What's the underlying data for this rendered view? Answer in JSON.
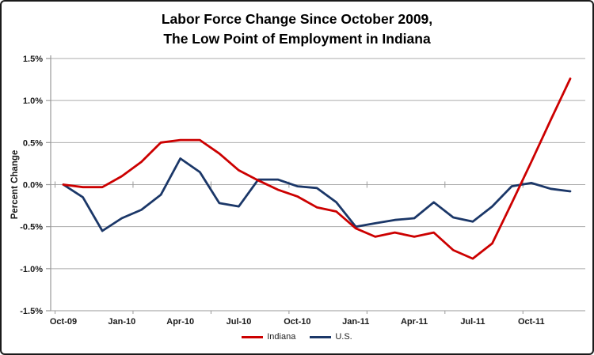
{
  "window": {
    "title_line1": "Labor Force Change Since October 2009,",
    "title_line2": "The Low Point of Employment in Indiana"
  },
  "chart_data": {
    "type": "line",
    "title": "Labor Force Change Since October 2009, The Low Point of Employment in Indiana",
    "xlabel": "",
    "ylabel": "Percent Change",
    "ylim": [
      -1.5,
      1.5
    ],
    "ytick_step": 0.5,
    "ytick_labels": [
      "1.5%",
      "1.0%",
      "0.5%",
      "0.0%",
      "-0.5%",
      "-1.0%",
      "-1.5%"
    ],
    "x_tick_labels": [
      "Oct-09",
      "Jan-10",
      "Apr-10",
      "Jul-10",
      "Oct-10",
      "Jan-11",
      "Apr-11",
      "Jul-11",
      "Oct-11"
    ],
    "x_tick_every": 3,
    "grid": true,
    "legend_position": "bottom",
    "categories": [
      "Oct-09",
      "Nov-09",
      "Dec-09",
      "Jan-10",
      "Feb-10",
      "Mar-10",
      "Apr-10",
      "May-10",
      "Jun-10",
      "Jul-10",
      "Aug-10",
      "Sep-10",
      "Oct-10",
      "Nov-10",
      "Dec-10",
      "Jan-11",
      "Feb-11",
      "Mar-11",
      "Apr-11",
      "May-11",
      "Jun-11",
      "Jul-11",
      "Aug-11",
      "Sep-11",
      "Oct-11",
      "Nov-11",
      "Dec-11"
    ],
    "series": [
      {
        "name": "Indiana",
        "color": "#CC0000",
        "values": [
          0.0,
          -0.03,
          -0.03,
          0.1,
          0.27,
          0.5,
          0.53,
          0.53,
          0.37,
          0.17,
          0.05,
          -0.06,
          -0.14,
          -0.27,
          -0.32,
          -0.52,
          -0.62,
          -0.57,
          -0.62,
          -0.57,
          -0.78,
          -0.88,
          -0.7,
          -0.22,
          0.27,
          0.77,
          1.26
        ]
      },
      {
        "name": "U.S.",
        "color": "#1B3768",
        "values": [
          0.0,
          -0.15,
          -0.55,
          -0.4,
          -0.3,
          -0.12,
          0.31,
          0.15,
          -0.22,
          -0.26,
          0.06,
          0.06,
          -0.02,
          -0.04,
          -0.21,
          -0.5,
          -0.46,
          -0.42,
          -0.4,
          -0.21,
          -0.39,
          -0.44,
          -0.26,
          -0.02,
          0.02,
          -0.05,
          -0.08
        ]
      }
    ],
    "axis_colors": {
      "gridline": "#ABABAB",
      "axis": "#9A9A9A",
      "tick_label": "#1A1A1A"
    }
  }
}
